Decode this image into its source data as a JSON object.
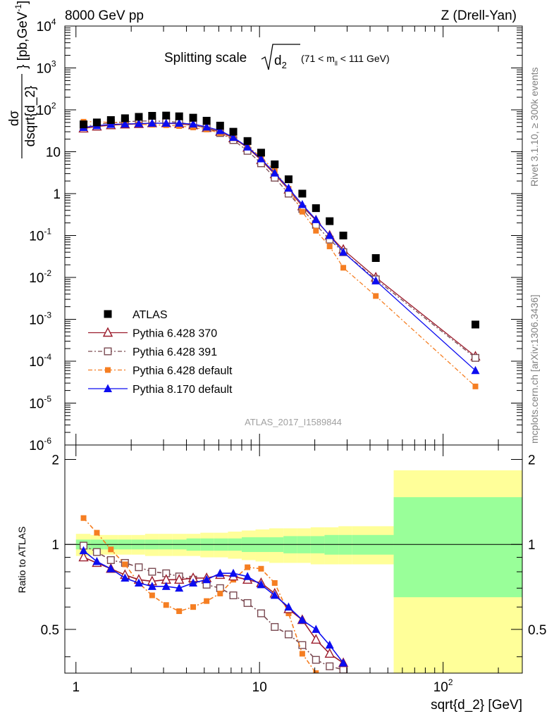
{
  "header": {
    "energy": "8000 GeV pp",
    "process": "Z (Drell-Yan)",
    "side_rivet": "Rivet 3.1.10, ≥ 300k events",
    "side_mcplots": "mcplots.cern.ch [arXiv:1306.3436]",
    "watermark": "ATLAS_2017_I1589844"
  },
  "chart_data": [
    {
      "type": "scatter",
      "panel": "main",
      "title": "Splitting scale",
      "title_math": "√d₂",
      "title_cut": "(71 < m_ll < 111 GeV)",
      "ylabel": "dσ / dsqrt{d_2} [pb,GeV⁻¹]",
      "xscale": "log",
      "yscale": "log",
      "xlim": [
        0.87,
        270
      ],
      "ylim": [
        1e-06,
        10000.0
      ],
      "yticks": [
        "10^-6",
        "10^-5",
        "10^-4",
        "10^-3",
        "10^-2",
        "10^-1",
        "1",
        "10",
        "10^2",
        "10^3",
        "10^4"
      ],
      "legend_position": "lower-left",
      "x": [
        1.1,
        1.3,
        1.55,
        1.85,
        2.2,
        2.6,
        3.1,
        3.65,
        4.35,
        5.15,
        6.1,
        7.2,
        8.6,
        10.2,
        12.1,
        14.4,
        17.1,
        20.3,
        24.1,
        28.6,
        43.0,
        150.0
      ],
      "series": [
        {
          "name": "ATLAS",
          "color": "#000000",
          "marker": "square-filled",
          "line": "none",
          "values": [
            45,
            50,
            57,
            63,
            68,
            72,
            73,
            70,
            65,
            55,
            42,
            30,
            18,
            9.5,
            5,
            2.2,
            1.0,
            0.45,
            0.22,
            0.1,
            0.029,
            0.00075
          ]
        },
        {
          "name": "Pythia 6.428 370",
          "color": "#9b1b2b",
          "marker": "triangle-open",
          "line": "solid",
          "values": [
            36,
            40,
            43,
            45,
            46,
            48,
            48,
            46,
            43,
            37,
            30,
            21,
            12.5,
            6.3,
            2.9,
            1.25,
            0.5,
            0.23,
            0.1,
            0.046,
            0.01,
            0.00013
          ]
        },
        {
          "name": "Pythia 6.428 391",
          "color": "#7a4a52",
          "marker": "square-open",
          "line": "dashdot",
          "values": [
            40,
            45,
            49,
            52,
            54,
            54,
            53,
            50,
            44,
            37,
            28,
            19,
            10.5,
            5.3,
            2.4,
            1.0,
            0.43,
            0.18,
            0.08,
            0.04,
            0.009,
            0.00012
          ]
        },
        {
          "name": "Pythia 6.428 default",
          "color": "#f57e22",
          "marker": "square-filled",
          "line": "dashdot",
          "values": [
            52,
            52,
            50,
            48,
            45,
            44,
            43,
            41,
            38,
            34,
            28,
            21,
            13.5,
            7.5,
            3.5,
            1.3,
            0.37,
            0.13,
            0.055,
            0.017,
            0.0036,
            2.5e-05
          ]
        },
        {
          "name": "Pythia 8.170 default",
          "color": "#0d0df0",
          "marker": "triangle-filled",
          "line": "solid",
          "values": [
            38,
            42,
            45,
            46,
            47,
            48,
            48,
            48,
            46,
            39,
            32,
            22,
            13,
            6.8,
            3.1,
            1.35,
            0.55,
            0.24,
            0.1,
            0.04,
            0.0083,
            6e-05
          ]
        }
      ]
    },
    {
      "type": "line",
      "panel": "ratio",
      "ylabel": "Ratio to ATLAS",
      "xlabel": "sqrt{d_2} [GeV]",
      "xscale": "log",
      "ylim": [
        0.35,
        2.25
      ],
      "yticks": [
        0.5,
        1,
        2
      ],
      "xticks": [
        "1",
        "10",
        "10^2"
      ],
      "band_edges": [
        1.0,
        1.2,
        1.42,
        1.69,
        2.0,
        2.38,
        2.83,
        3.36,
        4.0,
        4.76,
        5.66,
        6.73,
        8.0,
        9.51,
        11.3,
        13.5,
        16.0,
        19.0,
        22.6,
        26.9,
        32.0,
        53.8,
        270
      ],
      "band_stat_syst_low": [
        0.91,
        0.92,
        0.92,
        0.92,
        0.92,
        0.91,
        0.91,
        0.91,
        0.91,
        0.9,
        0.9,
        0.89,
        0.88,
        0.87,
        0.86,
        0.86,
        0.86,
        0.85,
        0.85,
        0.85,
        0.85,
        0.35
      ],
      "band_stat_syst_high": [
        1.09,
        1.08,
        1.08,
        1.08,
        1.08,
        1.09,
        1.09,
        1.09,
        1.09,
        1.1,
        1.1,
        1.11,
        1.12,
        1.13,
        1.14,
        1.14,
        1.14,
        1.15,
        1.15,
        1.16,
        1.16,
        1.83
      ],
      "band_stat_low": [
        0.96,
        0.96,
        0.96,
        0.96,
        0.96,
        0.96,
        0.96,
        0.96,
        0.95,
        0.95,
        0.95,
        0.95,
        0.94,
        0.94,
        0.94,
        0.93,
        0.93,
        0.93,
        0.92,
        0.92,
        0.92,
        0.65
      ],
      "band_stat_high": [
        1.04,
        1.04,
        1.04,
        1.04,
        1.04,
        1.04,
        1.04,
        1.04,
        1.05,
        1.05,
        1.05,
        1.05,
        1.06,
        1.06,
        1.06,
        1.07,
        1.07,
        1.07,
        1.08,
        1.08,
        1.08,
        1.47
      ],
      "band_colors": {
        "stat_syst": "#ffff99",
        "stat": "#99ff99"
      },
      "x": [
        1.1,
        1.3,
        1.55,
        1.85,
        2.2,
        2.6,
        3.1,
        3.65,
        4.35,
        5.15,
        6.1,
        7.2,
        8.6,
        10.2,
        12.1,
        14.4,
        17.1,
        20.3,
        24.1,
        28.6
      ],
      "series": [
        {
          "name": "Pythia 6.428 370",
          "values": [
            0.9,
            0.86,
            0.82,
            0.78,
            0.75,
            0.74,
            0.75,
            0.75,
            0.76,
            0.76,
            0.78,
            0.77,
            0.75,
            0.73,
            0.67,
            0.59,
            0.54,
            0.46,
            0.41,
            0.38
          ]
        },
        {
          "name": "Pythia 6.428 391",
          "values": [
            0.99,
            0.94,
            0.88,
            0.86,
            0.83,
            0.8,
            0.79,
            0.77,
            0.75,
            0.72,
            0.7,
            0.66,
            0.62,
            0.57,
            0.51,
            0.48,
            0.44,
            0.39,
            0.37,
            0.36
          ]
        },
        {
          "name": "Pythia 6.428 default",
          "values": [
            1.24,
            1.1,
            0.96,
            0.85,
            0.73,
            0.66,
            0.61,
            0.58,
            0.6,
            0.63,
            0.67,
            0.75,
            0.83,
            0.82,
            0.73,
            0.57,
            0.41,
            0.35,
            0.33,
            0.33
          ]
        },
        {
          "name": "Pythia 8.170 default",
          "values": [
            0.95,
            0.87,
            0.82,
            0.76,
            0.73,
            0.71,
            0.71,
            0.7,
            0.73,
            0.75,
            0.79,
            0.79,
            0.77,
            0.72,
            0.66,
            0.6,
            0.54,
            0.5,
            0.44,
            0.38
          ]
        }
      ]
    }
  ]
}
